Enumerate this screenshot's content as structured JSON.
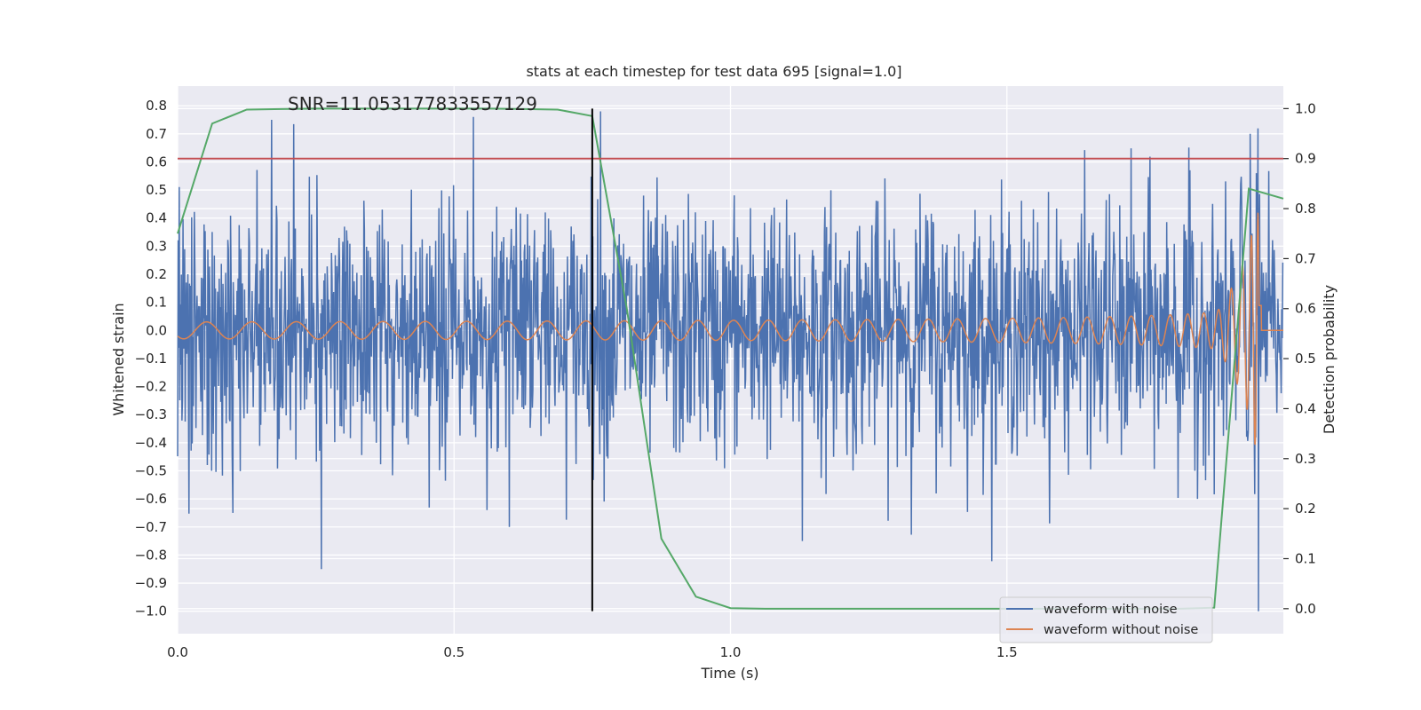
{
  "chart_data": {
    "type": "line",
    "title": "stats at each timestep for test data 695 [signal=1.0]",
    "annotation": "SNR=11.053177833557129",
    "xlabel": "Time (s)",
    "ylabel": "Whitened strain",
    "ylabel_right": "Detection probability",
    "xlim": [
      0.0,
      2.0
    ],
    "ylim": [
      -1.08,
      0.87
    ],
    "ylim_right": [
      -0.05,
      1.045
    ],
    "x_ticks": [
      0.0,
      0.5,
      1.0,
      1.5
    ],
    "x_tick_labels": [
      "0.0",
      "0.5",
      "1.0",
      "1.5"
    ],
    "y_ticks": [
      -1.0,
      -0.9,
      -0.8,
      -0.7,
      -0.6,
      -0.5,
      -0.4,
      -0.3,
      -0.2,
      -0.1,
      0.0,
      0.1,
      0.2,
      0.3,
      0.4,
      0.5,
      0.6,
      0.7,
      0.8
    ],
    "y_tick_labels": [
      "−1.0",
      "−0.9",
      "−0.8",
      "−0.7",
      "−0.6",
      "−0.5",
      "−0.4",
      "−0.3",
      "−0.2",
      "−0.1",
      "0.0",
      "0.1",
      "0.2",
      "0.3",
      "0.4",
      "0.5",
      "0.6",
      "0.7",
      "0.8"
    ],
    "y_ticks_right": [
      0.0,
      0.1,
      0.2,
      0.3,
      0.4,
      0.5,
      0.6,
      0.7,
      0.8,
      0.9,
      1.0
    ],
    "y_tick_labels_right": [
      "0.0",
      "0.1",
      "0.2",
      "0.3",
      "0.4",
      "0.5",
      "0.6",
      "0.7",
      "0.8",
      "0.9",
      "1.0"
    ],
    "threshold": {
      "value": 0.9,
      "axis": "right",
      "color": "#c44e52"
    },
    "vertical_marker": {
      "x": 0.75,
      "y_from": -1.0,
      "y_to": 0.79,
      "color": "#000000"
    },
    "series": [
      {
        "name": "waveform with noise",
        "color": "#4c72b0",
        "axis": "left",
        "kind": "noise",
        "amplitude_std": 0.22,
        "extreme_points": [
          {
            "x": 0.26,
            "y": -0.85
          },
          {
            "x": 0.765,
            "y": 0.78
          },
          {
            "x": 0.17,
            "y": 0.75
          },
          {
            "x": 0.535,
            "y": 0.76
          },
          {
            "x": 1.94,
            "y": 0.7
          },
          {
            "x": 1.955,
            "y": -1.0
          },
          {
            "x": 1.13,
            "y": -0.75
          },
          {
            "x": 0.1,
            "y": -0.65
          },
          {
            "x": 0.6,
            "y": -0.7
          },
          {
            "x": 1.84,
            "y": -0.5
          }
        ]
      },
      {
        "name": "waveform without noise",
        "color": "#dd8452",
        "axis": "left",
        "kind": "chirp",
        "merger_time": 1.96,
        "peak_amplitude": 0.42,
        "initial_amplitude": 0.03
      },
      {
        "name": "Detection probability",
        "color": "#55a868",
        "axis": "right",
        "x": [
          0.0,
          0.0625,
          0.125,
          0.1875,
          0.25,
          0.3125,
          0.375,
          0.4375,
          0.5,
          0.5625,
          0.625,
          0.6875,
          0.75,
          0.8125,
          0.875,
          0.9375,
          1.0,
          1.0625,
          1.125,
          1.1875,
          1.25,
          1.3125,
          1.375,
          1.4375,
          1.5,
          1.5625,
          1.625,
          1.6875,
          1.75,
          1.8125,
          1.875,
          1.9375,
          2.0
        ],
        "values": [
          0.75,
          0.97,
          0.998,
          0.999,
          1.0,
          1.0,
          1.0,
          1.0,
          1.0,
          1.0,
          0.999,
          0.998,
          0.985,
          0.6,
          0.14,
          0.024,
          0.001,
          0.0,
          0.0,
          0.0,
          0.0,
          0.0,
          0.0,
          0.0,
          0.0,
          0.0,
          0.0,
          0.0,
          0.0,
          0.0,
          0.002,
          0.84,
          0.82
        ]
      }
    ],
    "legend": {
      "position": "lower-right",
      "entries": [
        "waveform with noise",
        "waveform without noise"
      ]
    }
  }
}
